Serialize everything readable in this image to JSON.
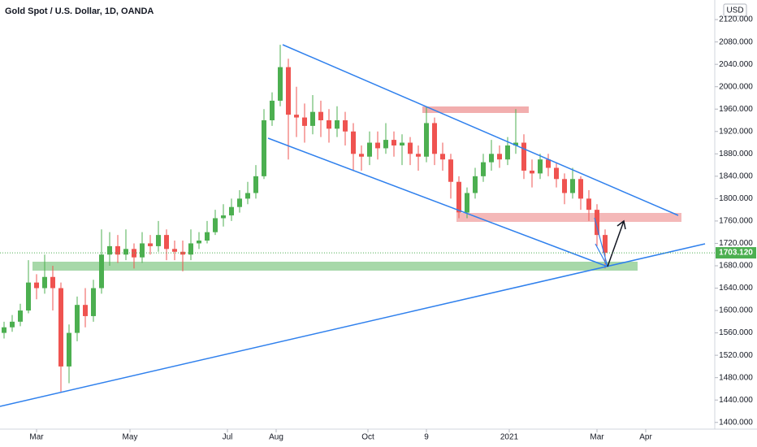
{
  "chart_data": {
    "type": "candlestick",
    "title": "Gold Spot / U.S. Dollar, 1D, OANDA",
    "currency": "USD",
    "up_color": "#4caf50",
    "down_color": "#ef5350",
    "open": [
      1560,
      1570,
      1580,
      1600,
      1650,
      1640,
      1660,
      1640,
      1500,
      1560,
      1610,
      1590,
      1640,
      1700,
      1715,
      1700,
      1710,
      1695,
      1720,
      1715,
      1735,
      1710,
      1705,
      1700,
      1720,
      1725,
      1740,
      1765,
      1770,
      1785,
      1800,
      1810,
      1840,
      1940,
      1975,
      2035,
      1950,
      1945,
      1930,
      1955,
      1940,
      1925,
      1940,
      1920,
      1880,
      1875,
      1900,
      1890,
      1905,
      1895,
      1900,
      1880,
      1875,
      1935,
      1880,
      1870,
      1830,
      1775,
      1810,
      1840,
      1865,
      1880,
      1870,
      1895,
      1900,
      1850,
      1845,
      1870,
      1855,
      1835,
      1810,
      1835,
      1800,
      1780,
      1735
    ],
    "high": [
      1580,
      1592,
      1612,
      1690,
      1665,
      1700,
      1680,
      1650,
      1575,
      1625,
      1640,
      1655,
      1745,
      1740,
      1735,
      1745,
      1720,
      1740,
      1735,
      1760,
      1745,
      1725,
      1725,
      1745,
      1740,
      1760,
      1780,
      1790,
      1800,
      1815,
      1830,
      1860,
      1960,
      1990,
      2075,
      2050,
      2000,
      1970,
      1985,
      1975,
      1960,
      1965,
      1955,
      1935,
      1895,
      1920,
      1920,
      1935,
      1920,
      1915,
      1910,
      1895,
      1965,
      1945,
      1900,
      1880,
      1840,
      1820,
      1855,
      1880,
      1905,
      1895,
      1910,
      1960,
      1915,
      1870,
      1880,
      1880,
      1865,
      1845,
      1855,
      1840,
      1815,
      1790,
      1745
    ],
    "low": [
      1550,
      1562,
      1572,
      1595,
      1620,
      1630,
      1600,
      1455,
      1470,
      1545,
      1570,
      1580,
      1630,
      1680,
      1685,
      1690,
      1675,
      1685,
      1700,
      1705,
      1690,
      1690,
      1670,
      1690,
      1710,
      1720,
      1735,
      1750,
      1760,
      1775,
      1790,
      1800,
      1835,
      1930,
      1965,
      1870,
      1910,
      1900,
      1915,
      1910,
      1900,
      1910,
      1895,
      1850,
      1850,
      1860,
      1870,
      1880,
      1875,
      1860,
      1860,
      1850,
      1865,
      1860,
      1850,
      1800,
      1765,
      1765,
      1800,
      1830,
      1850,
      1855,
      1860,
      1880,
      1835,
      1820,
      1835,
      1840,
      1820,
      1790,
      1800,
      1780,
      1760,
      1715,
      1675
    ],
    "close": [
      1570,
      1580,
      1600,
      1650,
      1640,
      1660,
      1640,
      1500,
      1560,
      1610,
      1590,
      1640,
      1700,
      1715,
      1700,
      1710,
      1695,
      1720,
      1715,
      1735,
      1710,
      1705,
      1700,
      1720,
      1725,
      1740,
      1765,
      1770,
      1785,
      1800,
      1810,
      1840,
      1940,
      1975,
      2035,
      1950,
      1945,
      1930,
      1955,
      1940,
      1925,
      1940,
      1920,
      1880,
      1875,
      1900,
      1890,
      1905,
      1895,
      1900,
      1880,
      1875,
      1935,
      1880,
      1870,
      1830,
      1775,
      1810,
      1840,
      1865,
      1880,
      1870,
      1895,
      1900,
      1850,
      1845,
      1870,
      1855,
      1835,
      1810,
      1835,
      1800,
      1780,
      1735,
      1703.12
    ],
    "last_price": {
      "value": 1703.12,
      "label": "1703.120"
    },
    "xlim": [
      -0.5,
      87.5
    ],
    "xticks": [
      {
        "value": 4,
        "label": "Mar"
      },
      {
        "value": 15.5,
        "label": "May"
      },
      {
        "value": 27.5,
        "label": "Jul"
      },
      {
        "value": 33.5,
        "label": "Aug"
      },
      {
        "value": 44.8,
        "label": "Oct"
      },
      {
        "value": 52,
        "label": "9"
      },
      {
        "value": 62.2,
        "label": "2021"
      },
      {
        "value": 73,
        "label": "Mar"
      },
      {
        "value": 79,
        "label": "Apr"
      }
    ],
    "ylim": [
      1388,
      2155
    ],
    "yticks": [
      {
        "value": 1400,
        "label": "1400.000"
      },
      {
        "value": 1440,
        "label": "1440.000"
      },
      {
        "value": 1480,
        "label": "1480.000"
      },
      {
        "value": 1520,
        "label": "1520.000"
      },
      {
        "value": 1560,
        "label": "1560.000"
      },
      {
        "value": 1600,
        "label": "1600.000"
      },
      {
        "value": 1640,
        "label": "1640.000"
      },
      {
        "value": 1680,
        "label": "1680.000"
      },
      {
        "value": 1720,
        "label": "1720.000"
      },
      {
        "value": 1760,
        "label": "1760.000"
      },
      {
        "value": 1800,
        "label": "1800.000"
      },
      {
        "value": 1840,
        "label": "1840.000"
      },
      {
        "value": 1880,
        "label": "1880.000"
      },
      {
        "value": 1920,
        "label": "1920.000"
      },
      {
        "value": 1960,
        "label": "1960.000"
      },
      {
        "value": 2000,
        "label": "2000.000"
      },
      {
        "value": 2040,
        "label": "2040.000"
      },
      {
        "value": 2080,
        "label": "2080.000"
      },
      {
        "value": 2120,
        "label": "2120.000"
      }
    ]
  }
}
